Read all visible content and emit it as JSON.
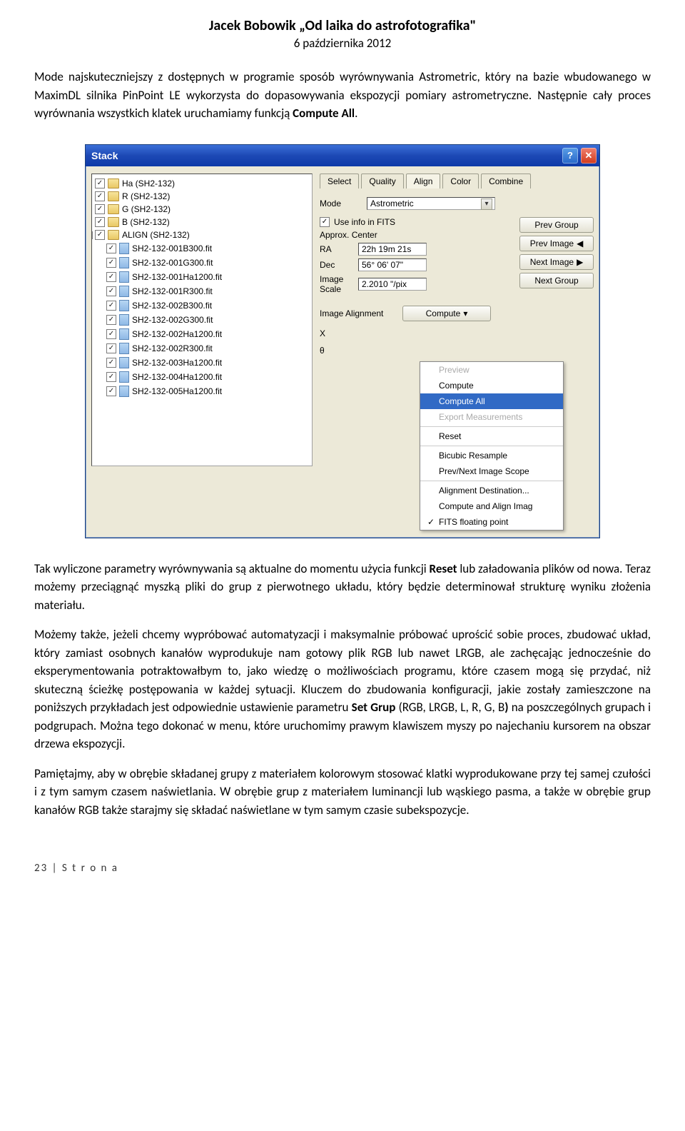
{
  "doc": {
    "title": "Jacek Bobowik „Od laika do astrofotografika\"",
    "subtitle": "6 października 2012",
    "para1_a": "Mode najskuteczniejszy z dostępnych w programie sposób wyrównywania Astrometric, który na bazie wbudowanego w MaximDL silnika PinPoint LE wykorzysta do dopasowywania ekspozycji pomiary astrometryczne. Następnie cały proces wyrównania wszystkich klatek uruchamiamy funkcją ",
    "para1_b": "Compute All",
    "para1_c": ".",
    "para2_a": "Tak wyliczone parametry wyrównywania są aktualne do momentu użycia funkcji ",
    "para2_b": "Reset",
    "para2_c": " lub załadowania plików od nowa. Teraz możemy przeciągnąć myszką pliki do grup z pierwotnego układu, który będzie determinował strukturę wyniku złożenia materiału.",
    "para3_a": "Możemy także, jeżeli chcemy wypróbować automatyzacji i maksymalnie próbować uprościć sobie proces, zbudować układ, który zamiast osobnych kanałów wyprodukuje nam gotowy plik RGB lub nawet LRGB, ale zachęcając jednocześnie do eksperymentowania potraktowałbym to, jako wiedzę o możliwościach programu, które czasem mogą się przydać, niż skuteczną ścieżkę postępowania w każdej sytuacji. Kluczem do zbudowania konfiguracji, jakie zostały zamieszczone na poniższych przykładach jest odpowiednie ustawienie parametru ",
    "para3_b": "Set Grup",
    "para3_c": " (RGB, LRGB, L, R, G, B",
    "para3_d": ")",
    "para3_e": " na poszczególnych grupach i podgrupach. Można tego dokonać w menu, które uruchomimy prawym klawiszem myszy po najechaniu kursorem na obszar drzewa ekspozycji.",
    "para4": "Pamiętajmy, aby w obrębie składanej grupy z materiałem kolorowym stosować klatki wyprodukowane przy tej samej czułości i z tym samym czasem naświetlania. W obrębie grup z materiałem luminancji lub wąskiego pasma, a także w obrębie grup kanałów RGB także starajmy się składać naświetlane w tym samym czasie subekspozycje.",
    "footer": "23 | S t r o n a"
  },
  "window": {
    "title": "Stack",
    "tabs": [
      "Select",
      "Quality",
      "Align",
      "Color",
      "Combine"
    ],
    "active_tab": 2,
    "mode_label": "Mode",
    "mode_value": "Astrometric",
    "use_fits_label": "Use info in FITS",
    "approx_label": "Approx. Center",
    "ra_label": "RA",
    "ra_value": "22h 19m 21s",
    "dec_label": "Dec",
    "dec_value": "56° 06' 07\"",
    "scale_label": "Image Scale",
    "scale_value": "2.2010 \"/pix",
    "prev_group": "Prev Group",
    "prev_image": "Prev Image",
    "next_image": "Next Image",
    "next_group": "Next Group",
    "align_label": "Image Alignment",
    "compute_btn": "Compute",
    "x_label": "X",
    "theta_label": "θ",
    "tree_groups": [
      "Ha (SH2-132)",
      "R (SH2-132)",
      "G (SH2-132)",
      "B (SH2-132)",
      "ALIGN (SH2-132)"
    ],
    "tree_files": [
      "SH2-132-001B300.fit",
      "SH2-132-001G300.fit",
      "SH2-132-001Ha1200.fit",
      "SH2-132-001R300.fit",
      "SH2-132-002B300.fit",
      "SH2-132-002G300.fit",
      "SH2-132-002Ha1200.fit",
      "SH2-132-002R300.fit",
      "SH2-132-003Ha1200.fit",
      "SH2-132-004Ha1200.fit",
      "SH2-132-005Ha1200.fit"
    ],
    "menu": [
      {
        "label": "Preview",
        "disabled": true
      },
      {
        "label": "Compute"
      },
      {
        "label": "Compute All",
        "highlight": true
      },
      {
        "label": "Export Measurements",
        "disabled": true
      },
      {
        "sep": true
      },
      {
        "label": "Reset"
      },
      {
        "sep": true
      },
      {
        "label": "Bicubic Resample"
      },
      {
        "label": "Prev/Next Image Scope"
      },
      {
        "sep": true
      },
      {
        "label": "Alignment Destination..."
      },
      {
        "label": "Compute and Align Imag"
      },
      {
        "label": "FITS floating point",
        "checked": true
      }
    ]
  }
}
